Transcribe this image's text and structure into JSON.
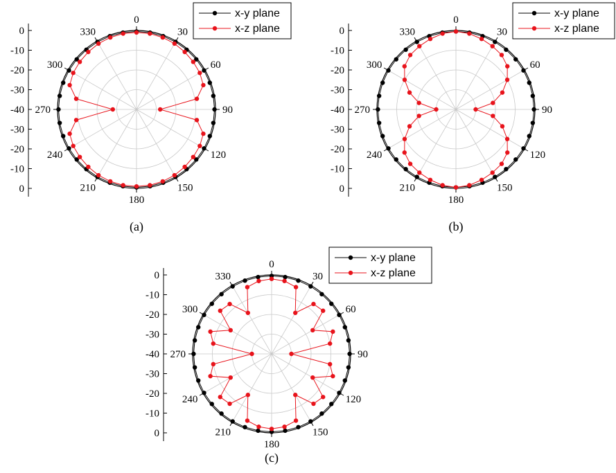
{
  "colors": {
    "xy": "#000000",
    "xz": "#e8131b",
    "grid": "#c8c8c8"
  },
  "chart_data": [
    {
      "type": "polar",
      "label": "(a)",
      "angle_ticks": [
        "0",
        "30",
        "60",
        "90",
        "120",
        "150",
        "180",
        "210",
        "240",
        "270",
        "300",
        "330"
      ],
      "radial_tick_labels_upper": [
        "0",
        "-10",
        "-20",
        "-30",
        "-40"
      ],
      "radial_tick_labels_lower": [
        "-30",
        "-20",
        "-10",
        "0"
      ],
      "rlim": [
        -40,
        0
      ],
      "legend": [
        "x-y plane",
        "x-z plane"
      ],
      "legend_position": "top-right",
      "angle_step_deg": 10,
      "series": [
        {
          "name": "x-y plane",
          "values": [
            -0.5,
            -0.5,
            -0.5,
            -0.5,
            -0.5,
            -0.5,
            -0.5,
            -0.5,
            -0.5,
            -0.5,
            -0.5,
            -0.5,
            -0.5,
            -0.5,
            -0.5,
            -0.5,
            -0.5,
            -0.5,
            -0.5,
            -0.5,
            -0.5,
            -0.5,
            -0.5,
            -0.5,
            -0.5,
            -0.5,
            -0.5,
            -0.5,
            -0.5,
            -0.5,
            -0.5,
            -0.5,
            -0.5,
            -0.5,
            -0.5,
            -0.5
          ]
        },
        {
          "name": "x-z plane",
          "values": [
            -1,
            -1,
            -1.2,
            -1.5,
            -2,
            -2.5,
            -3,
            -4,
            -9,
            -28,
            -9,
            -4,
            -3,
            -2.5,
            -2,
            -1.5,
            -1.2,
            -1,
            -1,
            -1,
            -1.2,
            -1.5,
            -2,
            -2.5,
            -3,
            -4,
            -9,
            -28,
            -9,
            -4,
            -3,
            -2.5,
            -2,
            -1.5,
            -1.2,
            -1
          ]
        }
      ]
    },
    {
      "type": "polar",
      "label": "(b)",
      "angle_ticks": [
        "0",
        "30",
        "60",
        "90",
        "120",
        "150",
        "180",
        "210",
        "240",
        "270",
        "300",
        "330"
      ],
      "radial_tick_labels_upper": [
        "0",
        "-10",
        "-20",
        "-30",
        "-40"
      ],
      "radial_tick_labels_lower": [
        "-30",
        "-20",
        "-10",
        "0"
      ],
      "rlim": [
        -40,
        0
      ],
      "legend": [
        "x-y plane",
        "x-z plane"
      ],
      "legend_position": "top-right",
      "angle_step_deg": 10,
      "series": [
        {
          "name": "x-y plane",
          "values": [
            -0.5,
            -0.5,
            -0.5,
            -0.5,
            -0.5,
            -0.5,
            -0.5,
            -0.5,
            -0.5,
            -0.5,
            -0.5,
            -0.5,
            -0.5,
            -0.5,
            -0.5,
            -0.5,
            -0.5,
            -0.5,
            -0.5,
            -0.5,
            -0.5,
            -0.5,
            -0.5,
            -0.5,
            -0.5,
            -0.5,
            -0.5,
            -0.5,
            -0.5,
            -0.5,
            -0.5,
            -0.5,
            -0.5,
            -0.5,
            -0.5,
            -0.5
          ]
        },
        {
          "name": "x-z plane",
          "values": [
            -0.5,
            -1,
            -2,
            -3,
            -4,
            -6,
            -10,
            -15,
            -21,
            -30,
            -21,
            -15,
            -10,
            -6,
            -4,
            -3,
            -2,
            -1,
            -0.5,
            -1,
            -2,
            -3,
            -4,
            -6,
            -10,
            -15,
            -21,
            -30,
            -21,
            -15,
            -10,
            -6,
            -4,
            -3,
            -2,
            -1
          ]
        }
      ]
    },
    {
      "type": "polar",
      "label": "(c)",
      "angle_ticks": [
        "0",
        "30",
        "60",
        "90",
        "120",
        "150",
        "180",
        "210",
        "240",
        "270",
        "300",
        "330"
      ],
      "radial_tick_labels_upper": [
        "0",
        "-10",
        "-20",
        "-30",
        "-40"
      ],
      "radial_tick_labels_lower": [
        "-30",
        "-20",
        "-10",
        "0"
      ],
      "rlim": [
        -40,
        0
      ],
      "legend": [
        "x-y plane",
        "x-z plane"
      ],
      "legend_position": "top-right",
      "angle_step_deg": 10,
      "series": [
        {
          "name": "x-y plane",
          "values": [
            -0.5,
            -0.5,
            -0.5,
            -0.5,
            -0.5,
            -0.5,
            -0.5,
            -0.5,
            -0.5,
            -0.5,
            -0.5,
            -0.5,
            -0.5,
            -0.5,
            -0.5,
            -0.5,
            -0.5,
            -0.5,
            -0.5,
            -0.5,
            -0.5,
            -0.5,
            -0.5,
            -0.5,
            -0.5,
            -0.5,
            -0.5,
            -0.5,
            -0.5,
            -0.5,
            -0.5,
            -0.5,
            -0.5,
            -0.5,
            -0.5,
            -0.5
          ]
        },
        {
          "name": "x-z plane",
          "values": [
            -2,
            -2.5,
            -4,
            -16,
            -7,
            -6,
            -16,
            -7,
            -10,
            -30,
            -10,
            -7,
            -16,
            -6,
            -7,
            -16,
            -4,
            -2.5,
            -2,
            -2.5,
            -4,
            -16,
            -7,
            -6,
            -16,
            -7,
            -10,
            -30,
            -10,
            -7,
            -16,
            -6,
            -7,
            -16,
            -4,
            -2.5
          ]
        }
      ]
    }
  ]
}
